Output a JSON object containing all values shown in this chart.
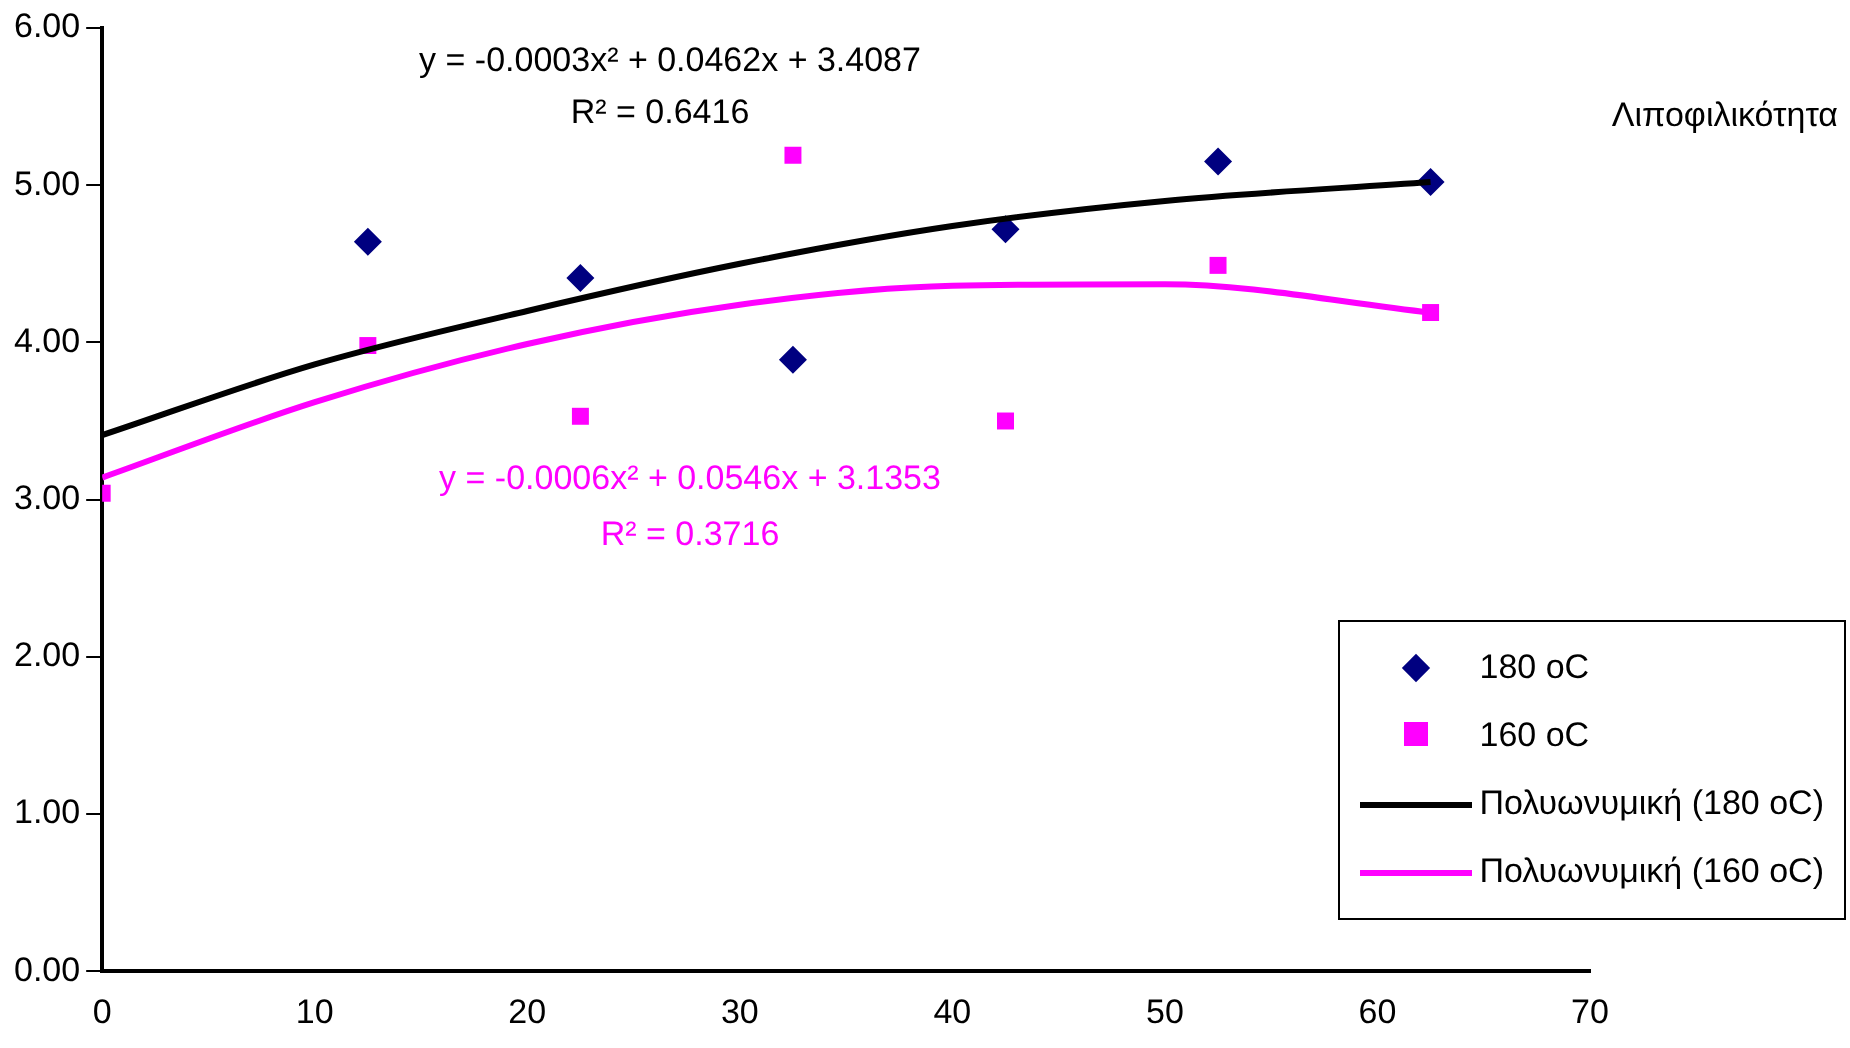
{
  "chart_data": {
    "type": "scatter",
    "title": "Λιποφιλικότητα",
    "xlim": [
      0,
      70
    ],
    "xticks": [
      0,
      10,
      20,
      30,
      40,
      50,
      60,
      70
    ],
    "ylim": [
      0,
      6
    ],
    "yticks": [
      {
        "value": 0,
        "label": "0.00"
      },
      {
        "value": 1,
        "label": "1.00"
      },
      {
        "value": 2,
        "label": "2.00"
      },
      {
        "value": 3,
        "label": "3.00"
      },
      {
        "value": 4,
        "label": "4.00"
      },
      {
        "value": 5,
        "label": "5.00"
      },
      {
        "value": 6,
        "label": "6.00"
      }
    ],
    "legend": "bottom right",
    "grid": false,
    "series": [
      {
        "name": "180 oC",
        "marker": "diamond",
        "color": "#000080",
        "x": [
          12.5,
          22.5,
          32.5,
          42.5,
          52.5,
          62.5
        ],
        "values": [
          4.64,
          4.41,
          3.89,
          4.72,
          5.15,
          5.02
        ]
      },
      {
        "name": "160 oC",
        "marker": "square",
        "color": "#ff00ff",
        "x": [
          0,
          12.5,
          22.5,
          32.5,
          42.5,
          52.5,
          62.5
        ],
        "values": [
          3.04,
          3.98,
          3.53,
          5.19,
          3.5,
          4.49,
          4.19
        ]
      },
      {
        "name": "Πολυωνυμική (180 oC)",
        "type": "line",
        "color": "#000000",
        "x": [
          0,
          10,
          20,
          30,
          40,
          50,
          62.5
        ],
        "values": [
          3.41,
          3.86,
          4.2,
          4.5,
          4.74,
          4.9,
          5.02
        ]
      },
      {
        "name": "Πολυωνυμική (160 oC)",
        "type": "line",
        "color": "#ff00ff",
        "x": [
          0,
          10,
          20,
          30,
          40,
          50,
          62.5
        ],
        "values": [
          3.14,
          3.62,
          3.99,
          4.24,
          4.36,
          4.37,
          4.19
        ]
      }
    ],
    "annotations": [
      "y = -0.0003x² + 0.0462x + 3.4087",
      "R² = 0.6416",
      "y = -0.0006x² + 0.0546x + 3.1353",
      "R² = 0.3716"
    ]
  }
}
